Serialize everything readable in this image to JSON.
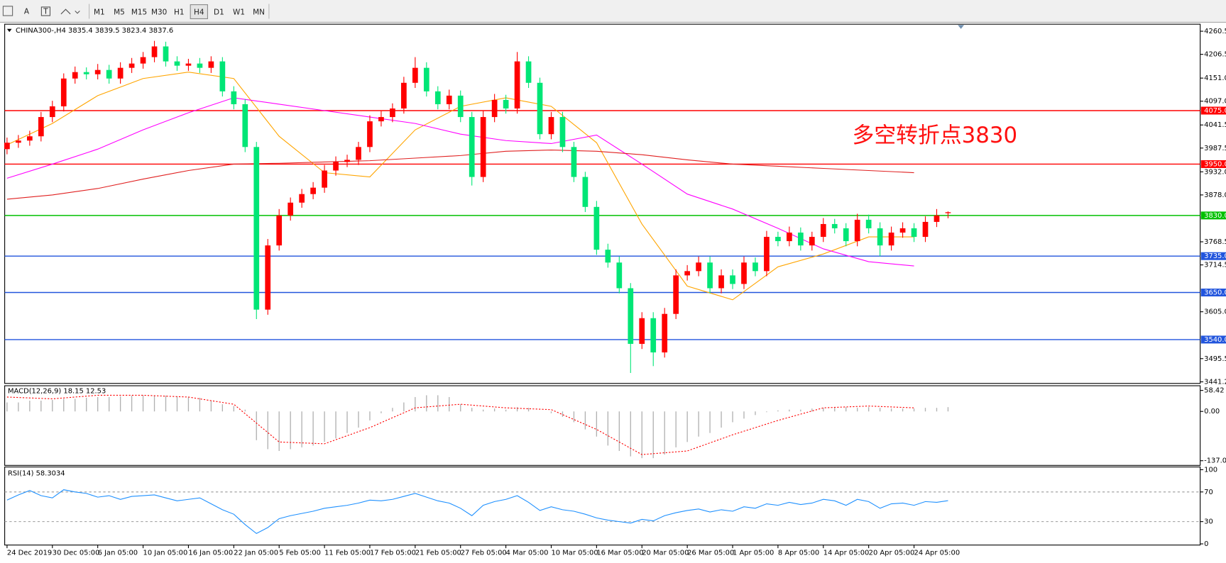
{
  "toolbar": {
    "tools": [
      "A"
    ],
    "timeframes": [
      "M1",
      "M5",
      "M15",
      "M30",
      "H1",
      "H4",
      "D1",
      "W1",
      "MN"
    ],
    "active": "H4"
  },
  "chart_data": [
    {
      "type": "candlestick",
      "title": "CHINA300-,H4 3835.4 3839.5 3823.4 3837.6",
      "annotation": "多空转折点3830",
      "categories": [
        "24 Dec 2019",
        "30 Dec 05:00",
        "6 Jan 05:00",
        "10 Jan 05:00",
        "16 Jan 05:00",
        "22 Jan 05:00",
        "5 Feb 05:00",
        "11 Feb 05:00",
        "17 Feb 05:00",
        "21 Feb 05:00",
        "27 Feb 05:00",
        "4 Mar 05:00",
        "10 Mar 05:00",
        "16 Mar 05:00",
        "20 Mar 05:00",
        "26 Mar 05:00",
        "1 Apr 05:00",
        "8 Apr 05:00",
        "14 Apr 05:00",
        "20 Apr 05:00",
        "24 Apr 05:00"
      ],
      "open": [
        3985,
        4000,
        4005,
        4015,
        4060,
        4085,
        4150,
        4165,
        4160,
        4170,
        4150,
        4175,
        4185,
        4200,
        4225,
        4190,
        4180,
        4185,
        4175,
        4190,
        4120,
        4090,
        3990,
        3610,
        3760,
        3830,
        3860,
        3880,
        3895,
        3935,
        3955,
        3960,
        3990,
        4050,
        4060,
        4080,
        4140,
        4175,
        4120,
        4090,
        4110,
        4060,
        3920,
        4060,
        4100,
        4080,
        4190,
        4140,
        4020,
        4060,
        3990,
        3920,
        3850,
        3750,
        3720,
        3660,
        3530,
        3590,
        3510,
        3600,
        3690,
        3700,
        3720,
        3660,
        3690,
        3670,
        3720,
        3700,
        3780,
        3770,
        3790,
        3760,
        3780,
        3810,
        3800,
        3770,
        3820,
        3800,
        3760,
        3790,
        3800,
        3780,
        3815,
        3835.4
      ],
      "high": [
        4012,
        4018,
        4028,
        4072,
        4098,
        4162,
        4178,
        4176,
        4184,
        4182,
        4188,
        4198,
        4212,
        4238,
        4236,
        4202,
        4196,
        4198,
        4202,
        4200,
        4132,
        4102,
        4002,
        3775,
        3845,
        3872,
        3892,
        3908,
        3948,
        3968,
        3972,
        4002,
        4064,
        4074,
        4092,
        4154,
        4200,
        4188,
        4132,
        4124,
        4122,
        4072,
        4074,
        4114,
        4112,
        4212,
        4202,
        4152,
        4072,
        4072,
        4002,
        3932,
        3864,
        3764,
        3734,
        3672,
        3604,
        3604,
        3614,
        3704,
        3714,
        3734,
        3734,
        3704,
        3704,
        3734,
        3732,
        3794,
        3792,
        3804,
        3802,
        3792,
        3824,
        3822,
        3812,
        3834,
        3832,
        3814,
        3804,
        3814,
        3812,
        3828,
        3845,
        3839.5
      ],
      "low": [
        3973,
        3988,
        3993,
        4003,
        4048,
        4073,
        4138,
        4148,
        4148,
        4138,
        4138,
        4163,
        4173,
        4188,
        4178,
        4168,
        4168,
        4163,
        4163,
        4108,
        4078,
        3978,
        3588,
        3598,
        3748,
        3818,
        3848,
        3868,
        3883,
        3923,
        3943,
        3948,
        3978,
        4038,
        4048,
        4068,
        4128,
        4108,
        4078,
        4078,
        4048,
        3900,
        3908,
        4048,
        4068,
        4068,
        4128,
        4008,
        4008,
        3978,
        3908,
        3838,
        3738,
        3708,
        3648,
        3462,
        3518,
        3478,
        3498,
        3588,
        3678,
        3688,
        3648,
        3648,
        3658,
        3658,
        3688,
        3688,
        3758,
        3758,
        3748,
        3748,
        3768,
        3788,
        3758,
        3758,
        3788,
        3735,
        3748,
        3778,
        3768,
        3768,
        3803,
        3823.4
      ],
      "close": [
        4000,
        4005,
        4015,
        4060,
        4085,
        4150,
        4165,
        4160,
        4170,
        4150,
        4175,
        4185,
        4200,
        4225,
        4190,
        4180,
        4185,
        4175,
        4190,
        4120,
        4090,
        3990,
        3610,
        3760,
        3830,
        3860,
        3880,
        3895,
        3935,
        3955,
        3960,
        3990,
        4050,
        4060,
        4080,
        4140,
        4175,
        4120,
        4090,
        4110,
        4060,
        3920,
        4060,
        4100,
        4080,
        4190,
        4140,
        4020,
        4060,
        3990,
        3920,
        3850,
        3750,
        3720,
        3660,
        3530,
        3590,
        3510,
        3600,
        3690,
        3700,
        3720,
        3660,
        3690,
        3670,
        3720,
        3700,
        3780,
        3770,
        3790,
        3760,
        3780,
        3810,
        3800,
        3770,
        3820,
        3800,
        3760,
        3790,
        3800,
        3780,
        3815,
        3830,
        3837.6
      ],
      "up_color": "#ff0000",
      "down_color": "#00e676",
      "moving_averages": [
        {
          "color": "#ffa500",
          "values": [
            3995,
            4045,
            4110,
            4150,
            4165,
            4150,
            4015,
            3930,
            3920,
            4030,
            4085,
            4105,
            4085,
            4000,
            3810,
            3665,
            3633,
            3710,
            3740,
            3780,
            3780
          ]
        },
        {
          "color": "#ff00ff",
          "values": [
            3917,
            3950,
            3985,
            4030,
            4070,
            4105,
            4090,
            4075,
            4060,
            4045,
            4020,
            4005,
            3998,
            4018,
            3950,
            3880,
            3845,
            3800,
            3752,
            3722,
            3712
          ]
        },
        {
          "color": "#e02020",
          "values": [
            3868,
            3878,
            3893,
            3915,
            3935,
            3950,
            3952,
            3955,
            3958,
            3964,
            3970,
            3980,
            3983,
            3980,
            3972,
            3960,
            3950,
            3945,
            3940,
            3935,
            3930
          ]
        }
      ],
      "levels": [
        {
          "value": 4075,
          "label": "4075.0",
          "color": "#ff0000"
        },
        {
          "value": 3950,
          "label": "3950.0",
          "color": "#ff0000"
        },
        {
          "value": 3830,
          "label": "3830.0",
          "color": "#00c000"
        },
        {
          "value": 3735,
          "label": "3735.0",
          "color": "#2255dd"
        },
        {
          "value": 3650,
          "label": "3650.0",
          "color": "#2255dd"
        },
        {
          "value": 3540,
          "label": "3540.0",
          "color": "#2255dd"
        }
      ],
      "ylim": [
        3441.25,
        4260.5
      ],
      "yticks": [
        4260.5,
        4206.5,
        {
          "value": 4151,
          "label": "4151.0"
        },
        {
          "value": 4097,
          "label": "4097.0"
        },
        4041.5,
        3987.5,
        {
          "value": 3932,
          "label": "3932.0"
        },
        {
          "value": 3878,
          "label": "3878.0"
        },
        3768.5,
        3714.5,
        {
          "value": 3605,
          "label": "3605.0"
        },
        3495.5,
        3441.25
      ]
    },
    {
      "type": "macd",
      "title": "MACD(12,26,9) 18.15 12.53",
      "histogram": [
        25,
        25,
        30,
        30,
        32,
        35,
        35,
        38,
        40,
        40,
        42,
        44,
        45,
        45,
        44,
        42,
        40,
        38,
        30,
        20,
        15,
        5,
        -80,
        -105,
        -110,
        -105,
        -100,
        -95,
        -85,
        -75,
        -60,
        -45,
        -25,
        -5,
        10,
        25,
        40,
        45,
        45,
        40,
        20,
        10,
        5,
        8,
        5,
        12,
        10,
        0,
        -5,
        -15,
        -30,
        -50,
        -70,
        -95,
        -110,
        -125,
        -130,
        -130,
        -120,
        -100,
        -85,
        -70,
        -60,
        -45,
        -30,
        -20,
        -10,
        -2,
        3,
        5,
        5,
        8,
        10,
        10,
        12,
        10,
        12,
        10,
        8,
        8,
        8,
        10,
        10,
        12
      ],
      "histogram_color": "#b0b0b0",
      "signal": [
        40,
        35,
        45,
        45,
        40,
        20,
        -85,
        -90,
        -45,
        10,
        20,
        10,
        5,
        -50,
        -120,
        -110,
        -65,
        -25,
        10,
        15,
        10
      ],
      "signal_color": "#ff0000",
      "ylim": [
        -137.09,
        58.42
      ],
      "yticks": [
        58.42,
        {
          "value": 0,
          "label": "0.00"
        },
        -137.09
      ]
    },
    {
      "type": "line",
      "title": "RSI(14) 58.3034",
      "values": [
        59,
        66,
        72,
        65,
        62,
        73,
        70,
        68,
        63,
        65,
        60,
        64,
        65,
        66,
        62,
        58,
        60,
        62,
        54,
        46,
        40,
        26,
        14,
        22,
        34,
        38,
        41,
        44,
        48,
        50,
        52,
        55,
        59,
        58,
        60,
        64,
        68,
        63,
        58,
        55,
        48,
        38,
        52,
        57,
        60,
        65,
        56,
        45,
        50,
        46,
        44,
        40,
        35,
        32,
        30,
        28,
        33,
        31,
        38,
        42,
        45,
        47,
        43,
        46,
        44,
        50,
        48,
        54,
        52,
        56,
        53,
        55,
        60,
        58,
        52,
        60,
        57,
        48,
        54,
        55,
        52,
        57,
        56,
        58.3034
      ],
      "color": "#1e90ff",
      "ylim": [
        0,
        100
      ],
      "yticks": [
        100,
        70,
        30,
        0
      ]
    }
  ]
}
